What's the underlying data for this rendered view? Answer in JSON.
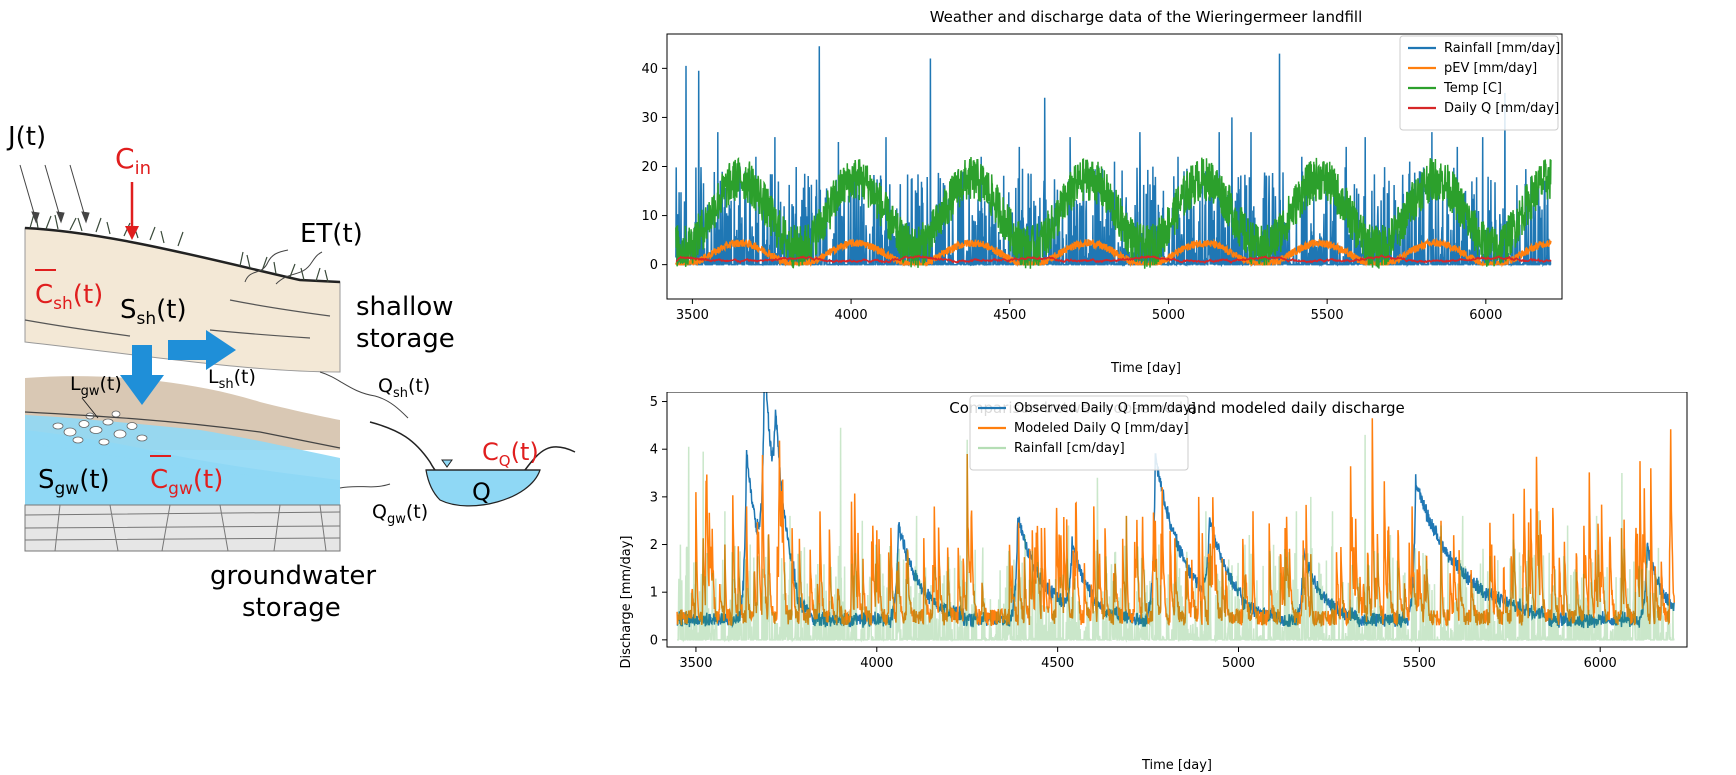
{
  "diagram": {
    "labels": {
      "j": "J(t)",
      "cin_main": "C",
      "cin_sub": "in",
      "et": "ET(t)",
      "csh_main": "C",
      "csh_sub": "sh",
      "csh_tail": "(t)",
      "ssh_main": "S",
      "ssh_sub": "sh",
      "ssh_tail": "(t)",
      "shallow1": "shallow",
      "shallow2": "storage",
      "lgw_main": "L",
      "lgw_sub": "gw",
      "lgw_tail": "(t)",
      "lsh_main": "L",
      "lsh_sub": "sh",
      "lsh_tail": "(t)",
      "qsh_main": "Q",
      "qsh_sub": "sh",
      "qsh_tail": "(t)",
      "cq_main": "C",
      "cq_sub": "Q",
      "cq_tail": "(t)",
      "sgw_main": "S",
      "sgw_sub": "gw",
      "sgw_tail": "(t)",
      "cgw_main": "C",
      "cgw_sub": "gw",
      "cgw_tail": "(t)",
      "q": "Q",
      "qgw_main": "Q",
      "qgw_sub": "gw",
      "qgw_tail": "(t)",
      "gw1": "groundwater",
      "gw2": "storage"
    },
    "colors": {
      "red": "#e01e1e",
      "blue_arrow": "#1f8fd8",
      "water": "#8fd8f5",
      "soil": "#f3e8d6",
      "clay": "#d9c8b4",
      "rock": "#e6e6e6"
    }
  },
  "chart_data": [
    {
      "type": "line",
      "title": "Weather and discharge data of the Wieringermeer landfill",
      "xlabel": "Time [day]",
      "ylabel": "",
      "xlim": [
        3420,
        6240
      ],
      "ylim": [
        -7,
        47
      ],
      "xticks": [
        3500,
        4000,
        4500,
        5000,
        5500,
        6000
      ],
      "yticks": [
        0,
        10,
        20,
        30,
        40
      ],
      "legend_position": "top-right",
      "series": [
        {
          "name": "Rainfall [mm/day]",
          "color": "#1f77b4",
          "generator": "rain",
          "peaks": [
            [
              3480,
              40.5
            ],
            [
              3520,
              39.5
            ],
            [
              3580,
              27
            ],
            [
              3650,
              20
            ],
            [
              3700,
              22
            ],
            [
              3760,
              26
            ],
            [
              3900,
              44.5
            ],
            [
              3960,
              25
            ],
            [
              4010,
              18
            ],
            [
              4110,
              26
            ],
            [
              4250,
              42
            ],
            [
              4410,
              22
            ],
            [
              4530,
              24
            ],
            [
              4610,
              34
            ],
            [
              4690,
              26
            ],
            [
              4780,
              20
            ],
            [
              4830,
              21
            ],
            [
              4910,
              27
            ],
            [
              5030,
              22
            ],
            [
              5160,
              27
            ],
            [
              5200,
              30
            ],
            [
              5260,
              27
            ],
            [
              5350,
              43
            ],
            [
              5420,
              22
            ],
            [
              5560,
              24
            ],
            [
              5620,
              26
            ],
            [
              5760,
              21
            ],
            [
              5830,
              27
            ],
            [
              5910,
              24
            ],
            [
              5990,
              26
            ],
            [
              6060,
              35
            ]
          ]
        },
        {
          "name": "pEV [mm/day]",
          "color": "#ff7f0e",
          "generator": "pev"
        },
        {
          "name": "Temp [C]",
          "color": "#2ca02c",
          "generator": "temp"
        },
        {
          "name": "Daily Q [mm/day]",
          "color": "#d62728",
          "generator": "q"
        }
      ]
    },
    {
      "type": "line",
      "title": "Comparison between observed and modeled daily discharge",
      "xlabel": "Time [day]",
      "ylabel": "Discharge [mm/day]",
      "xlim": [
        3420,
        6240
      ],
      "ylim": [
        -0.15,
        5.2
      ],
      "xticks": [
        3500,
        4000,
        4500,
        5000,
        5500,
        6000
      ],
      "yticks": [
        0,
        1,
        2,
        3,
        4,
        5
      ],
      "legend_position": "top-center",
      "series": [
        {
          "name": "Observed Daily Q [mm/day]",
          "color": "#1f77b4",
          "generator": "obs",
          "events": [
            [
              3640,
              3.9,
              45
            ],
            [
              3690,
              5.0,
              30
            ],
            [
              3720,
              2.5,
              35
            ],
            [
              4060,
              2.2,
              60
            ],
            [
              4390,
              2.4,
              70
            ],
            [
              4540,
              1.5,
              50
            ],
            [
              4770,
              3.8,
              80
            ],
            [
              4920,
              1.8,
              60
            ],
            [
              5180,
              1.6,
              50
            ],
            [
              5490,
              3.2,
              120
            ],
            [
              6130,
              1.8,
              40
            ]
          ]
        },
        {
          "name": "Modeled Daily Q [mm/day]",
          "color": "#ff7f0e",
          "generator": "mod",
          "peaks": [
            [
              3500,
              3.1
            ],
            [
              3580,
              2.0
            ],
            [
              3640,
              2.8
            ],
            [
              3700,
              2.1
            ],
            [
              3930,
              2.9
            ],
            [
              4000,
              2.3
            ],
            [
              4250,
              3.9
            ],
            [
              4430,
              2.3
            ],
            [
              4600,
              2.8
            ],
            [
              4690,
              2.6
            ],
            [
              4770,
              2.5
            ],
            [
              4890,
              3.0
            ],
            [
              5040,
              2.7
            ],
            [
              5200,
              1.8
            ],
            [
              5370,
              4.65
            ],
            [
              5480,
              2.8
            ],
            [
              5560,
              2.5
            ],
            [
              5700,
              2.0
            ],
            [
              5810,
              2.0
            ],
            [
              6110,
              3.75
            ],
            [
              6140,
              3.6
            ]
          ]
        },
        {
          "name": "Rainfall [cm/day]",
          "color": "#2ca02c",
          "opacity": 0.25,
          "generator": "rain_cm"
        }
      ]
    }
  ]
}
